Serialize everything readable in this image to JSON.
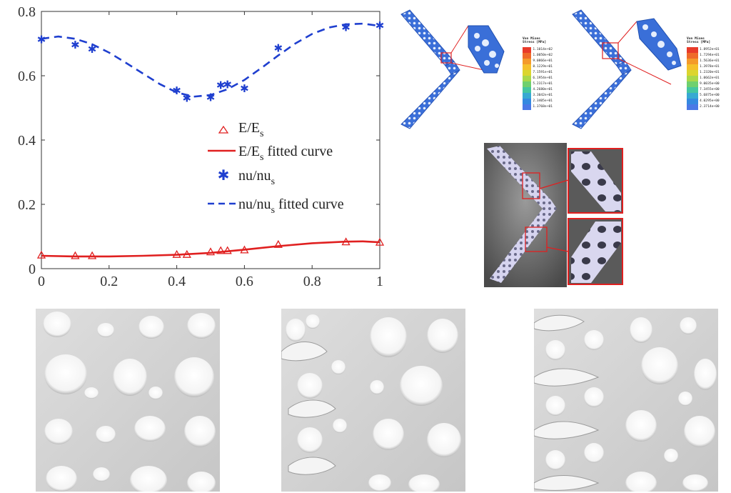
{
  "chart_data": {
    "type": "line",
    "xlim": [
      0,
      1
    ],
    "ylim": [
      0,
      0.8
    ],
    "xticks": [
      "0",
      "0.2",
      "0.4",
      "0.6",
      "0.8",
      "1"
    ],
    "yticks": [
      "0",
      "0.2",
      "0.4",
      "0.6",
      "0.8"
    ],
    "grid": false,
    "legend_position": "center",
    "series": [
      {
        "name": "E/E_s",
        "kind": "scatter",
        "marker": "triangle",
        "color": "#e02020",
        "x": [
          0,
          0.1,
          0.15,
          0.4,
          0.43,
          0.5,
          0.53,
          0.55,
          0.6,
          0.7,
          0.9,
          1.0
        ],
        "y": [
          0.042,
          0.04,
          0.04,
          0.044,
          0.044,
          0.052,
          0.056,
          0.056,
          0.058,
          0.075,
          0.083,
          0.082
        ]
      },
      {
        "name": "E/E_s fitted curve",
        "kind": "line",
        "style": "solid",
        "color": "#e02020",
        "x": [
          0,
          0.1,
          0.2,
          0.3,
          0.4,
          0.5,
          0.6,
          0.7,
          0.8,
          0.9,
          0.95,
          1.0
        ],
        "y": [
          0.04,
          0.038,
          0.038,
          0.04,
          0.043,
          0.049,
          0.059,
          0.07,
          0.079,
          0.084,
          0.085,
          0.082
        ]
      },
      {
        "name": "nu/nu_s",
        "kind": "scatter",
        "marker": "asterisk",
        "color": "#1f3fcf",
        "x": [
          0,
          0.1,
          0.15,
          0.4,
          0.43,
          0.5,
          0.53,
          0.55,
          0.6,
          0.7,
          0.9,
          1.0
        ],
        "y": [
          0.715,
          0.698,
          0.685,
          0.556,
          0.532,
          0.535,
          0.572,
          0.575,
          0.562,
          0.688,
          0.752,
          0.758
        ]
      },
      {
        "name": "nu/nu_s fitted curve",
        "kind": "line",
        "style": "dashed",
        "color": "#1f3fcf",
        "x": [
          0,
          0.05,
          0.1,
          0.15,
          0.2,
          0.25,
          0.3,
          0.35,
          0.4,
          0.45,
          0.5,
          0.55,
          0.6,
          0.65,
          0.7,
          0.75,
          0.8,
          0.85,
          0.9,
          0.95,
          1.0
        ],
        "y": [
          0.715,
          0.722,
          0.715,
          0.698,
          0.672,
          0.64,
          0.607,
          0.574,
          0.548,
          0.535,
          0.54,
          0.558,
          0.587,
          0.624,
          0.663,
          0.7,
          0.73,
          0.75,
          0.76,
          0.762,
          0.755
        ]
      }
    ]
  },
  "legend": {
    "e_label": "E/E",
    "e_sub": "s",
    "e_fit_label_a": "E/E",
    "e_fit_sub": "s",
    "e_fit_label_b": " fitted curve",
    "nu_label": "nu/nu",
    "nu_sub": "s",
    "nu_fit_label_a": "nu/nu",
    "nu_fit_sub": "s",
    "nu_fit_label_b": " fitted curve"
  },
  "fea_left": {
    "title_line1": "Von Mises",
    "title_line2": "Stress [MPa]",
    "values": [
      "1.1014e+02",
      "1.0050e+02",
      "9.0866e+01",
      "8.1229e+01",
      "7.1591e+01",
      "6.1954e+01",
      "5.2317e+01",
      "4.2680e+01",
      "3.3042e+01",
      "2.3405e+01",
      "1.3768e+01"
    ]
  },
  "fea_right": {
    "title_line1": "Von Mises",
    "title_line2": "Stress [MPa]",
    "values": [
      "1.8952e+01",
      "1.7294e+01",
      "1.5636e+01",
      "1.3978e+01",
      "1.2320e+01",
      "1.0662e+01",
      "9.0035e+00",
      "7.3455e+00",
      "5.6875e+00",
      "4.0295e+00",
      "2.3714e+00"
    ]
  },
  "colors": {
    "fea_scale": [
      "#e83b2a",
      "#ef6a2a",
      "#f49a2b",
      "#f5c02c",
      "#dbd52e",
      "#a9d84a",
      "#6fd06e",
      "#44c6a0",
      "#37a9d2",
      "#3489e0",
      "#4a79e6"
    ],
    "mesh_blue": "#3a6fd8",
    "photo_lattice": "#cfcfe6",
    "highlight_red": "#e02020"
  }
}
